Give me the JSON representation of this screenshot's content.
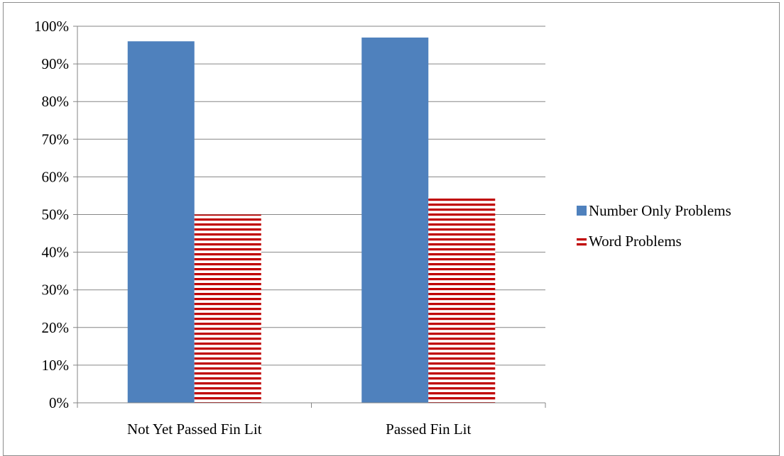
{
  "chart_data": {
    "type": "bar",
    "categories": [
      "Not Yet Passed Fin Lit",
      "Passed Fin Lit"
    ],
    "series": [
      {
        "name": "Number Only Problems",
        "values": [
          96,
          97
        ],
        "color": "#4f81bd",
        "pattern": "solid"
      },
      {
        "name": "Word Problems",
        "values": [
          50,
          54.5
        ],
        "color": "#c00000",
        "pattern": "horizontal-stripes"
      }
    ],
    "y_tick_labels": [
      "0%",
      "10%",
      "20%",
      "30%",
      "40%",
      "50%",
      "60%",
      "70%",
      "80%",
      "90%",
      "100%"
    ],
    "ylim": [
      0,
      100
    ],
    "grid": true,
    "legend": "right"
  }
}
